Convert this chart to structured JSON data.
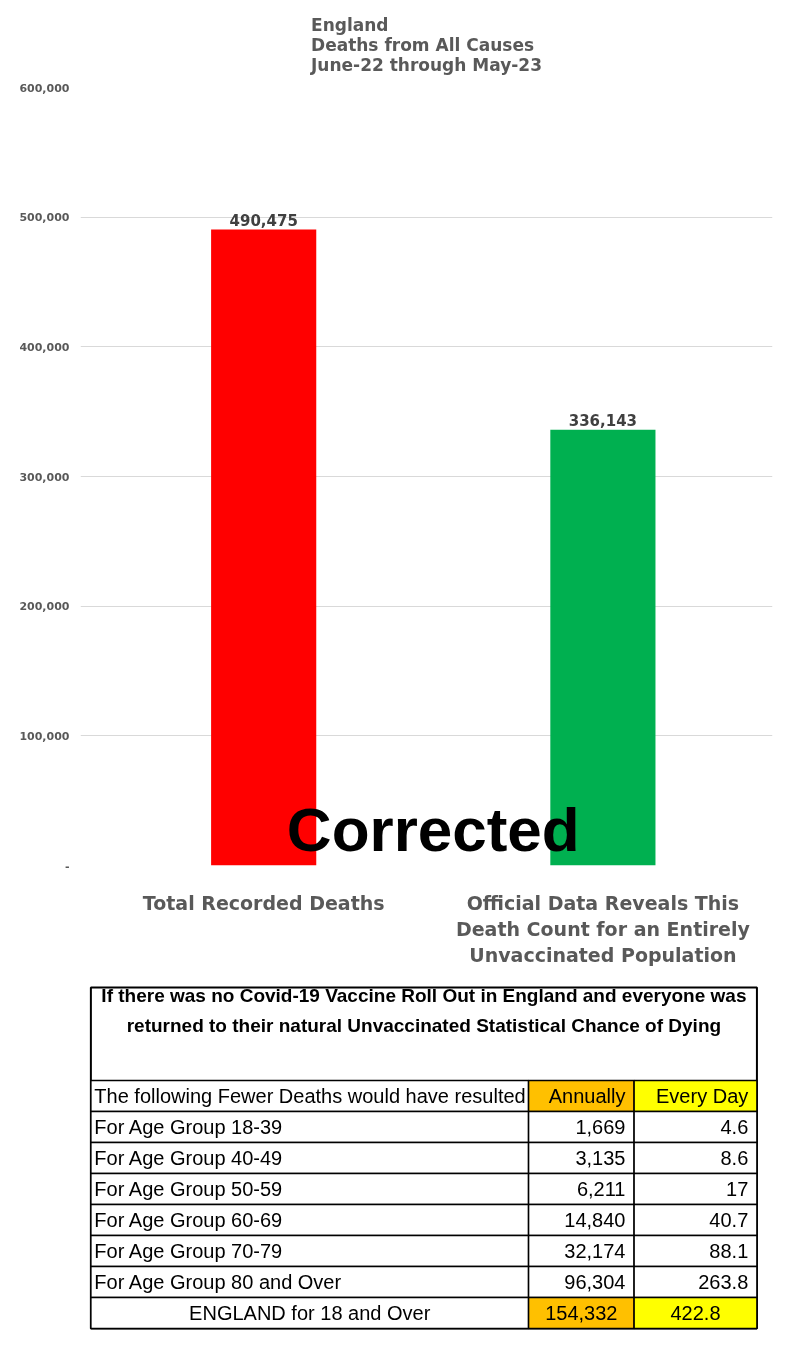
{
  "chart_data": [
    {
      "type": "bar",
      "title": "England\nDeaths from All Causes\nJune-22 through May-23",
      "categories": [
        "Total Recorded Deaths",
        "Official Data Reveals This Death Count for an Entirely Unvaccinated Population"
      ],
      "values": [
        490475,
        336143
      ],
      "colors": [
        "#ff0000",
        "#00b050"
      ],
      "value_labels": [
        "490,475",
        "336,143"
      ],
      "ylim": [
        0,
        600000
      ],
      "yticks": [
        {
          "value": 0,
          "label": "-"
        },
        {
          "value": 100000,
          "label": "100,000"
        },
        {
          "value": 200000,
          "label": "200,000"
        },
        {
          "value": 300000,
          "label": "300,000"
        },
        {
          "value": 400000,
          "label": "400,000"
        },
        {
          "value": 500000,
          "label": "500,000"
        },
        {
          "value": 600000,
          "label": "600,000"
        }
      ],
      "grid": "y",
      "annotations": [
        "Corrected"
      ]
    },
    {
      "type": "other",
      "title": "If there was no Covid-19 Vaccine Roll Out in England and everyone was returned to their natural Unvaccinated Statistical Chance of Dying",
      "categories": [
        "The following Fewer Deaths would have resulted",
        "Annually",
        "Every Day"
      ],
      "colors": [
        null,
        "#ffc000",
        "#ffff00"
      ],
      "y_categories": [
        "For Age Group 18-39",
        "For Age Group 40-49",
        "For Age Group 50-59",
        "For Age Group 60-69",
        "For Age Group 70-79",
        "For Age Group 80 and Over",
        "ENGLAND for 18 and Over"
      ],
      "cell_labels": [
        [
          "1,669",
          "4.6"
        ],
        [
          "3,135",
          "8.6"
        ],
        [
          "6,211",
          "17"
        ],
        [
          "14,840",
          "40.7"
        ],
        [
          "32,174",
          "88.1"
        ],
        [
          "96,304",
          "263.8"
        ],
        [
          "154,332",
          "422.8"
        ]
      ]
    }
  ]
}
